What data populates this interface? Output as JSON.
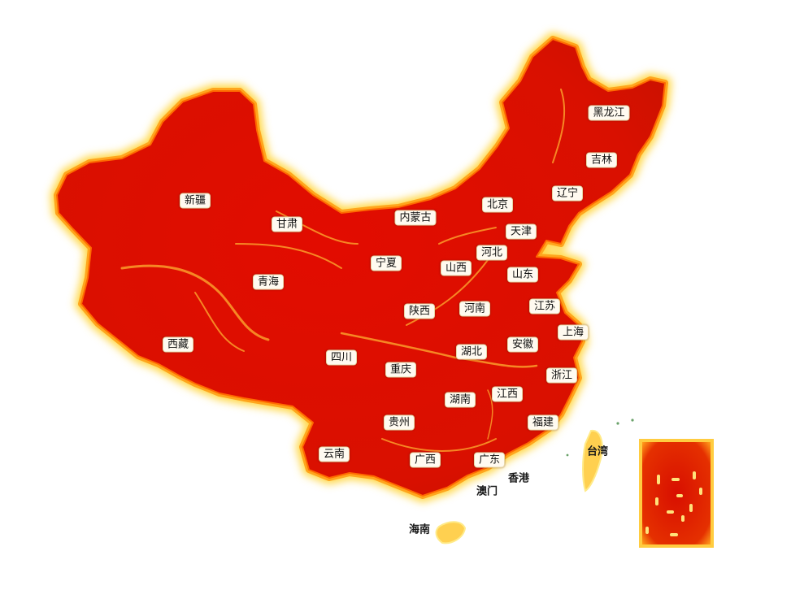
{
  "map": {
    "colors": {
      "land_fill": "#dd0f00",
      "land_edge": "#ffb020",
      "glow": "#ffe566",
      "background": "#ffffff"
    },
    "regions": [
      {
        "id": "heilongjiang",
        "name": "黑龙江",
        "style": "boxed"
      },
      {
        "id": "jilin",
        "name": "吉林",
        "style": "boxed"
      },
      {
        "id": "liaoning",
        "name": "辽宁",
        "style": "boxed"
      },
      {
        "id": "beijing",
        "name": "北京",
        "style": "boxed"
      },
      {
        "id": "tianjin",
        "name": "天津",
        "style": "boxed"
      },
      {
        "id": "neimenggu",
        "name": "内蒙古",
        "style": "boxed"
      },
      {
        "id": "hebei",
        "name": "河北",
        "style": "boxed"
      },
      {
        "id": "shanxi",
        "name": "山西",
        "style": "boxed"
      },
      {
        "id": "shandong",
        "name": "山东",
        "style": "boxed"
      },
      {
        "id": "xinjiang",
        "name": "新疆",
        "style": "boxed"
      },
      {
        "id": "gansu",
        "name": "甘肃",
        "style": "boxed"
      },
      {
        "id": "ningxia",
        "name": "宁夏",
        "style": "boxed"
      },
      {
        "id": "qinghai",
        "name": "青海",
        "style": "boxed"
      },
      {
        "id": "shaanxi",
        "name": "陕西",
        "style": "boxed"
      },
      {
        "id": "henan",
        "name": "河南",
        "style": "boxed"
      },
      {
        "id": "jiangsu",
        "name": "江苏",
        "style": "boxed"
      },
      {
        "id": "shanghai",
        "name": "上海",
        "style": "boxed"
      },
      {
        "id": "xizang",
        "name": "西藏",
        "style": "boxed"
      },
      {
        "id": "sichuan",
        "name": "四川",
        "style": "boxed"
      },
      {
        "id": "hubei",
        "name": "湖北",
        "style": "boxed"
      },
      {
        "id": "anhui",
        "name": "安徽",
        "style": "boxed"
      },
      {
        "id": "chongqing",
        "name": "重庆",
        "style": "boxed"
      },
      {
        "id": "zhejiang",
        "name": "浙江",
        "style": "boxed"
      },
      {
        "id": "hunan",
        "name": "湖南",
        "style": "boxed"
      },
      {
        "id": "jiangxi",
        "name": "江西",
        "style": "boxed"
      },
      {
        "id": "guizhou",
        "name": "贵州",
        "style": "boxed"
      },
      {
        "id": "fujian",
        "name": "福建",
        "style": "boxed"
      },
      {
        "id": "yunnan",
        "name": "云南",
        "style": "boxed"
      },
      {
        "id": "guangxi",
        "name": "广西",
        "style": "boxed"
      },
      {
        "id": "guangdong",
        "name": "广东",
        "style": "boxed"
      },
      {
        "id": "taiwan",
        "name": "台湾",
        "style": "plain"
      },
      {
        "id": "xianggang",
        "name": "香港",
        "style": "plain"
      },
      {
        "id": "aomen",
        "name": "澳门",
        "style": "plain"
      },
      {
        "id": "hainan",
        "name": "海南",
        "style": "plain"
      }
    ]
  }
}
